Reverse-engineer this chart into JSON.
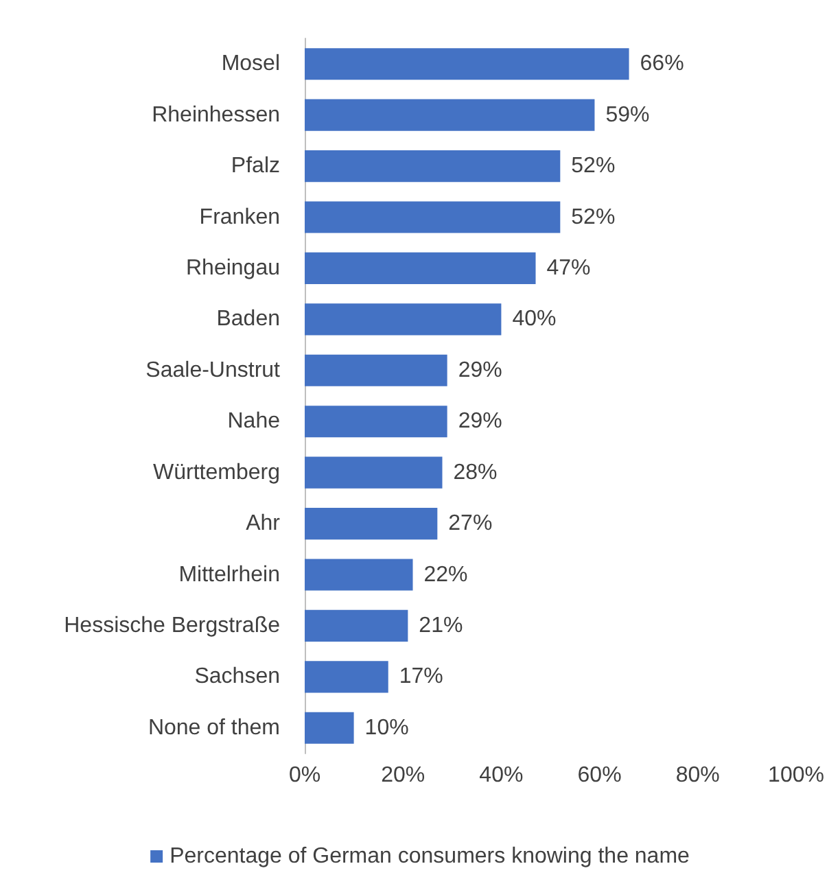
{
  "chart_data": {
    "type": "bar",
    "orientation": "horizontal",
    "categories": [
      "Mosel",
      "Rheinhessen",
      "Pfalz",
      "Franken",
      "Rheingau",
      "Baden",
      "Saale-Unstrut",
      "Nahe",
      "Württemberg",
      "Ahr",
      "Mittelrhein",
      "Hessische Bergstraße",
      "Sachsen",
      "None of them"
    ],
    "series": [
      {
        "name": "Percentage of German consumers knowing the name",
        "color": "#4472c4",
        "values": [
          66,
          59,
          52,
          52,
          47,
          40,
          29,
          29,
          28,
          27,
          22,
          21,
          17,
          10
        ],
        "value_labels": [
          "66%",
          "59%",
          "52%",
          "52%",
          "47%",
          "40%",
          "29%",
          "29%",
          "28%",
          "27%",
          "22%",
          "21%",
          "17%",
          "10%"
        ]
      }
    ],
    "xlim": [
      0,
      100
    ],
    "xticks": [
      {
        "value": 0,
        "label": "0%"
      },
      {
        "value": 20,
        "label": "20%"
      },
      {
        "value": 40,
        "label": "40%"
      },
      {
        "value": 60,
        "label": "60%"
      },
      {
        "value": 80,
        "label": "80%"
      },
      {
        "value": 100,
        "label": "100%"
      }
    ],
    "grid": false,
    "legend": "bottom"
  }
}
